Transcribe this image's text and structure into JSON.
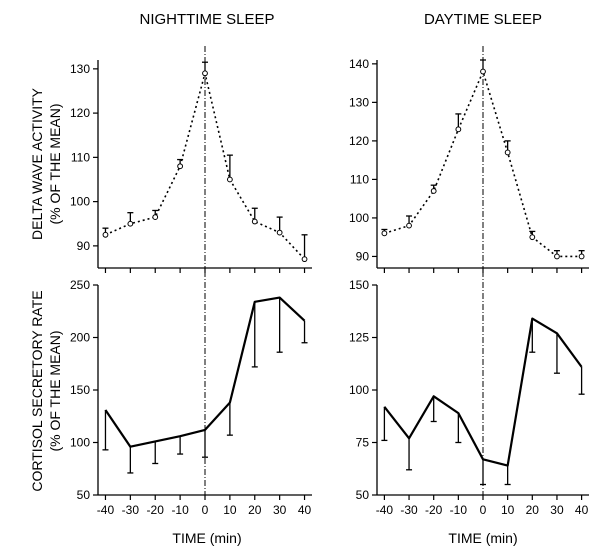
{
  "figure": {
    "col_titles": [
      "NIGHTTIME SLEEP",
      "DAYTIME SLEEP"
    ],
    "row_ylabels": [
      [
        "DELTA WAVE ACTIVITY",
        "(% OF THE MEAN)"
      ],
      [
        "CORTISOL SECRETORY RATE",
        "(% OF THE MEAN)"
      ]
    ],
    "xlabel": "TIME (min)"
  },
  "chart_data": [
    {
      "type": "line",
      "title": "NIGHTTIME SLEEP",
      "ylabel": "DELTA WAVE ACTIVITY (% OF THE MEAN)",
      "xlabel": "",
      "style": "dotted-open-circles",
      "x": [
        -40,
        -30,
        -20,
        -10,
        0,
        10,
        20,
        30,
        40
      ],
      "y": [
        92.5,
        95,
        96.5,
        108,
        129,
        105,
        95.5,
        93,
        87
      ],
      "err": [
        1.5,
        2.5,
        1.5,
        1.5,
        2.5,
        5.5,
        3,
        3.5,
        5.5
      ],
      "err_dir": "up",
      "xlim": [
        -43,
        43
      ],
      "ylim": [
        85,
        132
      ],
      "yticks": [
        90,
        100,
        110,
        120,
        130
      ],
      "xticks": [
        -40,
        -30,
        -20,
        -10,
        0,
        10,
        20,
        30,
        40
      ],
      "show_xtick_labels": false,
      "vline": 0
    },
    {
      "type": "line",
      "title": "DAYTIME SLEEP",
      "ylabel": "",
      "xlabel": "",
      "style": "dotted-open-circles",
      "x": [
        -40,
        -30,
        -20,
        -10,
        0,
        10,
        20,
        30,
        40
      ],
      "y": [
        96,
        98,
        107,
        123,
        138,
        117,
        95,
        90,
        90
      ],
      "err": [
        1,
        2.5,
        1.5,
        4,
        3,
        3,
        1.5,
        1.5,
        1.5
      ],
      "err_dir": "up",
      "xlim": [
        -43,
        43
      ],
      "ylim": [
        87,
        141
      ],
      "yticks": [
        90,
        100,
        110,
        120,
        130,
        140
      ],
      "xticks": [
        -40,
        -30,
        -20,
        -10,
        0,
        10,
        20,
        30,
        40
      ],
      "show_xtick_labels": false,
      "vline": 0
    },
    {
      "type": "line",
      "title": "",
      "ylabel": "CORTISOL SECRETORY RATE (% OF THE MEAN)",
      "xlabel": "TIME (min)",
      "style": "solid",
      "x": [
        -40,
        -30,
        -20,
        -10,
        0,
        10,
        20,
        30,
        40
      ],
      "y": [
        131,
        96,
        101,
        106,
        112,
        138,
        234,
        238,
        216
      ],
      "err": [
        38,
        25,
        21,
        17,
        26,
        31,
        62,
        52,
        21
      ],
      "err_dir": "down",
      "xlim": [
        -43,
        43
      ],
      "ylim": [
        50,
        250
      ],
      "yticks": [
        50,
        100,
        150,
        200,
        250
      ],
      "xticks": [
        -40,
        -30,
        -20,
        -10,
        0,
        10,
        20,
        30,
        40
      ],
      "show_xtick_labels": true,
      "vline": 0
    },
    {
      "type": "line",
      "title": "",
      "ylabel": "",
      "xlabel": "TIME (min)",
      "style": "solid",
      "x": [
        -40,
        -30,
        -20,
        -10,
        0,
        10,
        20,
        30,
        40
      ],
      "y": [
        92,
        77,
        97,
        89,
        67,
        64,
        134,
        127,
        111
      ],
      "err": [
        16,
        15,
        12,
        14,
        12,
        9,
        16,
        19,
        13
      ],
      "err_dir": "down",
      "xlim": [
        -43,
        43
      ],
      "ylim": [
        50,
        150
      ],
      "yticks": [
        50,
        75,
        100,
        125,
        150
      ],
      "xticks": [
        -40,
        -30,
        -20,
        -10,
        0,
        10,
        20,
        30,
        40
      ],
      "show_xtick_labels": true,
      "vline": 0
    }
  ]
}
